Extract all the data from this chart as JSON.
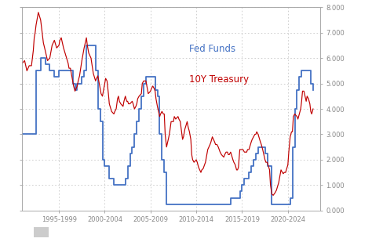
{
  "background_color": "#ffffff",
  "plot_bg_color": "#ffffff",
  "fed_funds_color": "#4472c4",
  "treasury_color": "#c00000",
  "grid_color": "#c8c8c8",
  "label_fed_funds": "Fed Funds",
  "label_treasury": "10Y Treasury",
  "label_fed_funds_color": "#4472c4",
  "label_treasury_color": "#c00000",
  "ylim": [
    0,
    8.0
  ],
  "yticks": [
    0,
    1,
    2,
    3,
    4,
    5,
    6,
    7,
    8
  ],
  "ytick_labels": [
    "0.000",
    "1.000",
    "2.000",
    "3.000",
    "4.000",
    "5.000",
    "6.000",
    "7.000",
    "8.000"
  ],
  "xtick_labels": [
    "1995-1999",
    "2000-2004",
    "2005-2009",
    "2010-2014",
    "2015-2019",
    "2020-2024"
  ],
  "xtick_positions": [
    1997,
    2002,
    2007,
    2012,
    2017,
    2022
  ],
  "xlim": [
    1993.0,
    2025.5
  ],
  "fed_funds_data": [
    [
      1993.0,
      3.0
    ],
    [
      1994.0,
      3.0
    ],
    [
      1994.5,
      5.5
    ],
    [
      1995.0,
      6.0
    ],
    [
      1995.5,
      5.75
    ],
    [
      1996.0,
      5.5
    ],
    [
      1996.5,
      5.25
    ],
    [
      1997.0,
      5.5
    ],
    [
      1998.0,
      5.5
    ],
    [
      1998.5,
      5.0
    ],
    [
      1998.75,
      4.75
    ],
    [
      1999.0,
      5.0
    ],
    [
      1999.5,
      5.25
    ],
    [
      1999.75,
      5.5
    ],
    [
      2000.0,
      6.5
    ],
    [
      2000.5,
      6.5
    ],
    [
      2001.0,
      5.5
    ],
    [
      2001.25,
      4.0
    ],
    [
      2001.5,
      3.5
    ],
    [
      2001.75,
      2.0
    ],
    [
      2002.0,
      1.75
    ],
    [
      2002.5,
      1.25
    ],
    [
      2003.0,
      1.0
    ],
    [
      2003.5,
      1.0
    ],
    [
      2004.0,
      1.0
    ],
    [
      2004.25,
      1.25
    ],
    [
      2004.5,
      1.75
    ],
    [
      2004.75,
      2.25
    ],
    [
      2005.0,
      2.5
    ],
    [
      2005.25,
      3.0
    ],
    [
      2005.5,
      3.5
    ],
    [
      2005.75,
      4.0
    ],
    [
      2006.0,
      4.5
    ],
    [
      2006.25,
      5.0
    ],
    [
      2006.5,
      5.25
    ],
    [
      2006.75,
      5.25
    ],
    [
      2007.0,
      5.25
    ],
    [
      2007.25,
      5.25
    ],
    [
      2007.5,
      4.75
    ],
    [
      2007.75,
      4.5
    ],
    [
      2008.0,
      3.0
    ],
    [
      2008.25,
      2.0
    ],
    [
      2008.5,
      1.5
    ],
    [
      2008.75,
      0.25
    ],
    [
      2009.0,
      0.25
    ],
    [
      2010.0,
      0.25
    ],
    [
      2011.0,
      0.25
    ],
    [
      2012.0,
      0.25
    ],
    [
      2013.0,
      0.25
    ],
    [
      2014.0,
      0.25
    ],
    [
      2015.0,
      0.25
    ],
    [
      2015.75,
      0.5
    ],
    [
      2016.0,
      0.5
    ],
    [
      2016.75,
      0.75
    ],
    [
      2017.0,
      1.0
    ],
    [
      2017.25,
      1.25
    ],
    [
      2017.5,
      1.25
    ],
    [
      2017.75,
      1.5
    ],
    [
      2018.0,
      1.75
    ],
    [
      2018.25,
      2.0
    ],
    [
      2018.5,
      2.25
    ],
    [
      2018.75,
      2.5
    ],
    [
      2019.0,
      2.5
    ],
    [
      2019.5,
      2.25
    ],
    [
      2019.75,
      1.75
    ],
    [
      2020.0,
      1.75
    ],
    [
      2020.25,
      0.25
    ],
    [
      2020.5,
      0.25
    ],
    [
      2021.0,
      0.25
    ],
    [
      2021.5,
      0.25
    ],
    [
      2022.0,
      0.25
    ],
    [
      2022.25,
      0.5
    ],
    [
      2022.5,
      2.5
    ],
    [
      2022.75,
      4.0
    ],
    [
      2023.0,
      4.75
    ],
    [
      2023.25,
      5.25
    ],
    [
      2023.5,
      5.5
    ],
    [
      2023.75,
      5.5
    ],
    [
      2024.0,
      5.5
    ],
    [
      2024.25,
      5.5
    ],
    [
      2024.5,
      5.0
    ],
    [
      2024.75,
      4.75
    ]
  ],
  "treasury_data": [
    [
      1993.0,
      5.8
    ],
    [
      1993.25,
      5.9
    ],
    [
      1993.5,
      5.5
    ],
    [
      1993.75,
      5.7
    ],
    [
      1994.0,
      5.7
    ],
    [
      1994.1,
      6.0
    ],
    [
      1994.2,
      6.3
    ],
    [
      1994.3,
      6.8
    ],
    [
      1994.4,
      7.0
    ],
    [
      1994.5,
      7.3
    ],
    [
      1994.6,
      7.5
    ],
    [
      1994.75,
      7.8
    ],
    [
      1995.0,
      7.5
    ],
    [
      1995.1,
      7.2
    ],
    [
      1995.2,
      6.9
    ],
    [
      1995.3,
      6.6
    ],
    [
      1995.5,
      6.3
    ],
    [
      1995.75,
      5.9
    ],
    [
      1996.0,
      6.0
    ],
    [
      1996.1,
      6.2
    ],
    [
      1996.25,
      6.5
    ],
    [
      1996.5,
      6.7
    ],
    [
      1996.75,
      6.4
    ],
    [
      1997.0,
      6.5
    ],
    [
      1997.1,
      6.7
    ],
    [
      1997.25,
      6.8
    ],
    [
      1997.5,
      6.4
    ],
    [
      1997.75,
      6.1
    ],
    [
      1998.0,
      5.8
    ],
    [
      1998.1,
      5.6
    ],
    [
      1998.25,
      5.6
    ],
    [
      1998.5,
      5.1
    ],
    [
      1998.6,
      4.9
    ],
    [
      1998.75,
      4.7
    ],
    [
      1999.0,
      4.9
    ],
    [
      1999.1,
      5.1
    ],
    [
      1999.25,
      5.3
    ],
    [
      1999.5,
      5.9
    ],
    [
      1999.75,
      6.4
    ],
    [
      2000.0,
      6.8
    ],
    [
      2000.1,
      6.5
    ],
    [
      2000.25,
      6.2
    ],
    [
      2000.5,
      6.0
    ],
    [
      2000.75,
      5.4
    ],
    [
      2001.0,
      5.1
    ],
    [
      2001.1,
      5.2
    ],
    [
      2001.25,
      5.3
    ],
    [
      2001.4,
      5.0
    ],
    [
      2001.5,
      4.8
    ],
    [
      2001.6,
      4.6
    ],
    [
      2001.75,
      4.5
    ],
    [
      2002.0,
      5.0
    ],
    [
      2002.1,
      5.2
    ],
    [
      2002.25,
      5.1
    ],
    [
      2002.4,
      4.6
    ],
    [
      2002.5,
      4.2
    ],
    [
      2002.75,
      3.9
    ],
    [
      2003.0,
      3.8
    ],
    [
      2003.1,
      3.9
    ],
    [
      2003.25,
      4.0
    ],
    [
      2003.4,
      4.4
    ],
    [
      2003.5,
      4.5
    ],
    [
      2003.6,
      4.3
    ],
    [
      2003.75,
      4.2
    ],
    [
      2004.0,
      4.1
    ],
    [
      2004.1,
      4.3
    ],
    [
      2004.25,
      4.5
    ],
    [
      2004.4,
      4.3
    ],
    [
      2004.5,
      4.3
    ],
    [
      2004.6,
      4.2
    ],
    [
      2004.75,
      4.2
    ],
    [
      2005.0,
      4.3
    ],
    [
      2005.1,
      4.2
    ],
    [
      2005.25,
      4.0
    ],
    [
      2005.4,
      4.1
    ],
    [
      2005.5,
      4.2
    ],
    [
      2005.6,
      4.4
    ],
    [
      2005.75,
      4.5
    ],
    [
      2006.0,
      4.6
    ],
    [
      2006.1,
      5.0
    ],
    [
      2006.25,
      5.1
    ],
    [
      2006.5,
      5.1
    ],
    [
      2006.75,
      4.6
    ],
    [
      2007.0,
      4.7
    ],
    [
      2007.1,
      4.8
    ],
    [
      2007.25,
      4.9
    ],
    [
      2007.4,
      4.8
    ],
    [
      2007.5,
      4.7
    ],
    [
      2007.6,
      4.4
    ],
    [
      2007.75,
      4.1
    ],
    [
      2008.0,
      3.7
    ],
    [
      2008.1,
      3.8
    ],
    [
      2008.25,
      3.9
    ],
    [
      2008.4,
      3.8
    ],
    [
      2008.5,
      3.8
    ],
    [
      2008.6,
      3.0
    ],
    [
      2008.75,
      2.5
    ],
    [
      2009.0,
      2.9
    ],
    [
      2009.1,
      3.1
    ],
    [
      2009.25,
      3.5
    ],
    [
      2009.5,
      3.5
    ],
    [
      2009.6,
      3.7
    ],
    [
      2009.75,
      3.6
    ],
    [
      2010.0,
      3.7
    ],
    [
      2010.1,
      3.6
    ],
    [
      2010.25,
      3.5
    ],
    [
      2010.5,
      2.8
    ],
    [
      2010.6,
      2.9
    ],
    [
      2010.75,
      3.2
    ],
    [
      2011.0,
      3.5
    ],
    [
      2011.1,
      3.3
    ],
    [
      2011.25,
      3.1
    ],
    [
      2011.4,
      2.8
    ],
    [
      2011.5,
      2.2
    ],
    [
      2011.6,
      2.0
    ],
    [
      2011.75,
      1.9
    ],
    [
      2012.0,
      2.0
    ],
    [
      2012.1,
      1.9
    ],
    [
      2012.25,
      1.7
    ],
    [
      2012.5,
      1.5
    ],
    [
      2012.6,
      1.6
    ],
    [
      2012.75,
      1.65
    ],
    [
      2013.0,
      1.9
    ],
    [
      2013.1,
      2.1
    ],
    [
      2013.25,
      2.4
    ],
    [
      2013.5,
      2.6
    ],
    [
      2013.6,
      2.7
    ],
    [
      2013.75,
      2.9
    ],
    [
      2014.0,
      2.7
    ],
    [
      2014.1,
      2.6
    ],
    [
      2014.25,
      2.6
    ],
    [
      2014.4,
      2.5
    ],
    [
      2014.5,
      2.4
    ],
    [
      2014.6,
      2.3
    ],
    [
      2014.75,
      2.2
    ],
    [
      2015.0,
      2.1
    ],
    [
      2015.1,
      2.2
    ],
    [
      2015.25,
      2.3
    ],
    [
      2015.4,
      2.3
    ],
    [
      2015.5,
      2.2
    ],
    [
      2015.6,
      2.2
    ],
    [
      2015.75,
      2.3
    ],
    [
      2016.0,
      2.0
    ],
    [
      2016.1,
      1.9
    ],
    [
      2016.25,
      1.8
    ],
    [
      2016.4,
      1.6
    ],
    [
      2016.5,
      1.6
    ],
    [
      2016.6,
      1.7
    ],
    [
      2016.75,
      2.4
    ],
    [
      2017.0,
      2.4
    ],
    [
      2017.1,
      2.4
    ],
    [
      2017.25,
      2.3
    ],
    [
      2017.4,
      2.3
    ],
    [
      2017.5,
      2.3
    ],
    [
      2017.6,
      2.4
    ],
    [
      2017.75,
      2.4
    ],
    [
      2018.0,
      2.7
    ],
    [
      2018.1,
      2.8
    ],
    [
      2018.25,
      2.9
    ],
    [
      2018.4,
      3.0
    ],
    [
      2018.5,
      3.0
    ],
    [
      2018.6,
      3.1
    ],
    [
      2018.75,
      3.0
    ],
    [
      2019.0,
      2.7
    ],
    [
      2019.1,
      2.6
    ],
    [
      2019.25,
      2.4
    ],
    [
      2019.5,
      2.0
    ],
    [
      2019.6,
      1.9
    ],
    [
      2019.75,
      1.9
    ],
    [
      2020.0,
      1.6
    ],
    [
      2020.1,
      1.0
    ],
    [
      2020.25,
      0.65
    ],
    [
      2020.4,
      0.6
    ],
    [
      2020.5,
      0.65
    ],
    [
      2020.6,
      0.7
    ],
    [
      2020.75,
      0.8
    ],
    [
      2021.0,
      1.1
    ],
    [
      2021.1,
      1.3
    ],
    [
      2021.25,
      1.6
    ],
    [
      2021.4,
      1.5
    ],
    [
      2021.5,
      1.45
    ],
    [
      2021.6,
      1.5
    ],
    [
      2021.75,
      1.5
    ],
    [
      2022.0,
      1.8
    ],
    [
      2022.1,
      2.3
    ],
    [
      2022.25,
      2.9
    ],
    [
      2022.4,
      3.1
    ],
    [
      2022.5,
      3.1
    ],
    [
      2022.6,
      3.7
    ],
    [
      2022.75,
      3.8
    ],
    [
      2023.0,
      3.7
    ],
    [
      2023.1,
      3.6
    ],
    [
      2023.25,
      3.8
    ],
    [
      2023.4,
      4.0
    ],
    [
      2023.5,
      4.3
    ],
    [
      2023.6,
      4.7
    ],
    [
      2023.75,
      4.7
    ],
    [
      2024.0,
      4.3
    ],
    [
      2024.1,
      4.5
    ],
    [
      2024.25,
      4.4
    ],
    [
      2024.4,
      4.2
    ],
    [
      2024.5,
      3.9
    ],
    [
      2024.6,
      3.8
    ],
    [
      2024.75,
      4.0
    ]
  ]
}
